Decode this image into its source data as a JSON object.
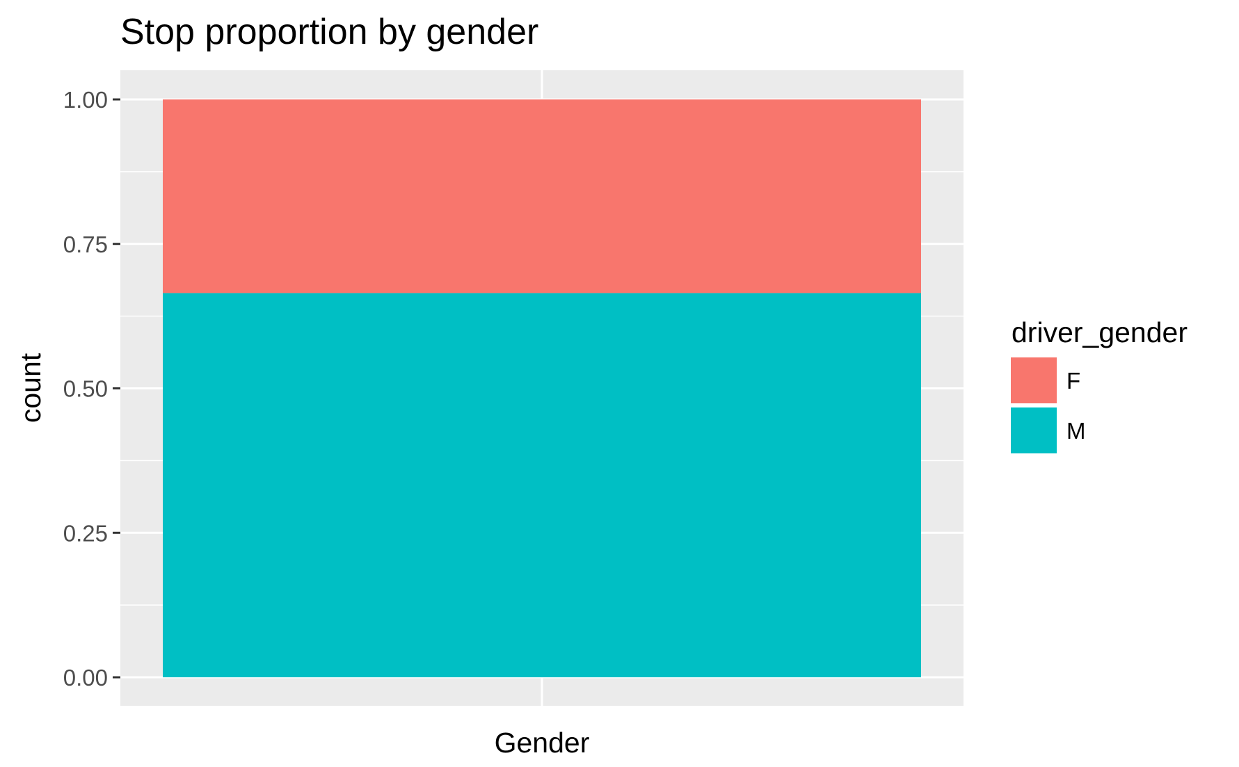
{
  "chart_data": {
    "type": "bar",
    "stacked": true,
    "title": "Stop proportion by gender",
    "xlabel": "Gender",
    "ylabel": "count",
    "ylim": [
      0,
      1
    ],
    "yticks": [
      "0.00",
      "0.25",
      "0.50",
      "0.75",
      "1.00"
    ],
    "ytick_values": [
      0,
      0.25,
      0.5,
      0.75,
      1.0
    ],
    "categories": [
      ""
    ],
    "series": [
      {
        "name": "F",
        "values": [
          0.335
        ],
        "color": "#F8766D"
      },
      {
        "name": "M",
        "values": [
          0.665
        ],
        "color": "#00BFC4"
      }
    ],
    "legend": {
      "title": "driver_gender",
      "position": "right"
    },
    "grid": true,
    "panel_background": "#EBEBEB"
  }
}
